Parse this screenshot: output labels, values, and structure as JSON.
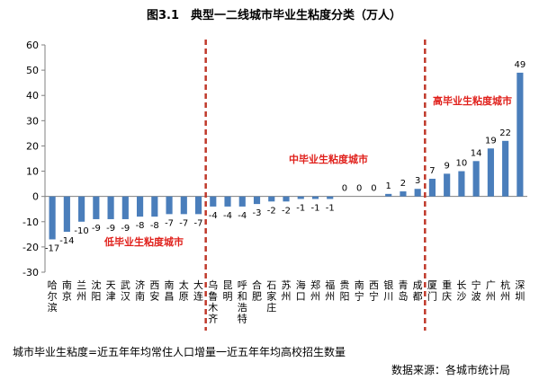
{
  "chart_data": {
    "type": "bar",
    "title": "图3.1　典型一二线城市毕业生粘度分类（万人）",
    "categories": [
      "哈尔滨",
      "南京",
      "兰州",
      "沈阳",
      "天津",
      "武汉",
      "济南",
      "西安",
      "南昌",
      "太原",
      "大连",
      "乌鲁木齐",
      "昆明",
      "呼和浩特",
      "合肥",
      "石家庄",
      "苏州",
      "海口",
      "郑州",
      "福州",
      "贵阳",
      "南宁",
      "西宁",
      "银川",
      "青岛",
      "成都",
      "厦门",
      "重庆",
      "长沙",
      "宁波",
      "广州",
      "杭州",
      "深圳"
    ],
    "values": [
      -17,
      -14,
      -10,
      -9,
      -9,
      -9,
      -8,
      -8,
      -7,
      -7,
      -7,
      -4,
      -4,
      -4,
      -3,
      -2,
      -2,
      -1,
      -1,
      -1,
      0,
      0,
      0,
      1,
      2,
      3,
      7,
      9,
      10,
      14,
      19,
      22,
      49
    ],
    "value_labels": [
      "-17",
      "-14",
      "-10",
      "-9",
      "-9",
      "-9",
      "-8",
      "-8",
      "-7",
      "-7",
      "-7",
      "-4",
      "-4",
      "-4",
      "-3",
      "-2",
      "-2",
      "-1",
      "-1",
      "-1",
      "0",
      "0",
      "0",
      "1",
      "2",
      "3",
      "7",
      "9",
      "10",
      "14",
      "19",
      "22",
      "49"
    ],
    "ylim": [
      -30,
      60
    ],
    "yticks": [
      -30,
      -20,
      -10,
      0,
      10,
      20,
      30,
      40,
      50,
      60
    ],
    "grid": false,
    "bar_color": "#4a7ebb",
    "divider_color": "#c0392b",
    "annotation_color": "#e0201b",
    "annotations": [
      "低毕业生粘度城市",
      "中毕业生粘度城市",
      "高毕业生粘度城市"
    ],
    "footnote": "城市毕业生粘度=近五年年均常住人口增量一近五年年均高校招生数量",
    "source": "数据来源：各城市统计局"
  }
}
